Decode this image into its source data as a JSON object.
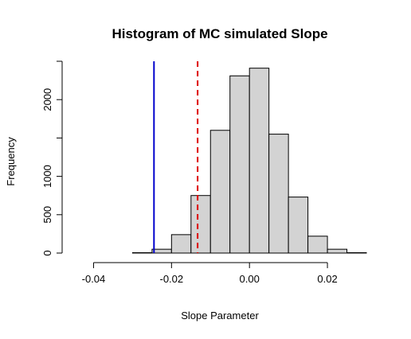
{
  "chart_data": {
    "type": "bar",
    "title": "Histogram of MC simulated Slope",
    "xlabel": "Slope Parameter",
    "ylabel": "Frequency",
    "bins": [
      {
        "x0": -0.045,
        "x1": -0.04,
        "count": 0
      },
      {
        "x0": -0.04,
        "x1": -0.035,
        "count": 0
      },
      {
        "x0": -0.035,
        "x1": -0.03,
        "count": 0
      },
      {
        "x0": -0.03,
        "x1": -0.025,
        "count": 5
      },
      {
        "x0": -0.025,
        "x1": -0.02,
        "count": 50
      },
      {
        "x0": -0.02,
        "x1": -0.015,
        "count": 240
      },
      {
        "x0": -0.015,
        "x1": -0.01,
        "count": 750
      },
      {
        "x0": -0.01,
        "x1": -0.005,
        "count": 1600
      },
      {
        "x0": -0.005,
        "x1": 0.0,
        "count": 2310
      },
      {
        "x0": 0.0,
        "x1": 0.005,
        "count": 2410
      },
      {
        "x0": 0.005,
        "x1": 0.01,
        "count": 1550
      },
      {
        "x0": 0.01,
        "x1": 0.015,
        "count": 730
      },
      {
        "x0": 0.015,
        "x1": 0.02,
        "count": 220
      },
      {
        "x0": 0.02,
        "x1": 0.025,
        "count": 50
      },
      {
        "x0": 0.025,
        "x1": 0.03,
        "count": 5
      }
    ],
    "x_ticks": [
      -0.04,
      -0.02,
      0.0,
      0.02
    ],
    "x_tick_labels": [
      "-0.04",
      "-0.02",
      "0.00",
      "0.02"
    ],
    "y_ticks": [
      0,
      500,
      1000,
      2000
    ],
    "y_tick_labels": [
      "0",
      "500",
      "1000",
      "2000"
    ],
    "xlim": [
      -0.045,
      0.03
    ],
    "ylim": [
      0,
      2500
    ],
    "vlines": [
      {
        "x": -0.0245,
        "color": "#0000cc",
        "style": "solid"
      },
      {
        "x": -0.0133,
        "color": "#dd0000",
        "style": "dashed"
      }
    ],
    "bar_fill": "#d3d3d3",
    "bar_stroke": "#000000",
    "grid": false
  }
}
